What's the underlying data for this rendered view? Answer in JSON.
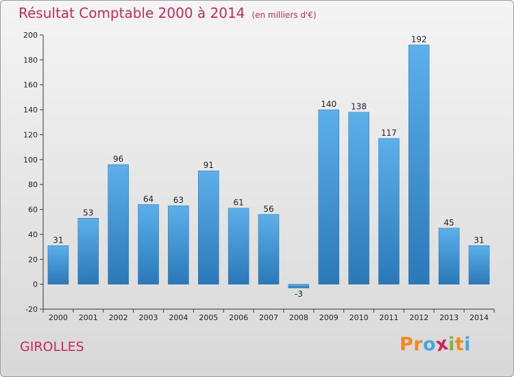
{
  "title": "Résultat Comptable 2000 à 2014",
  "unit_note": "(en milliers d'€)",
  "place": "GIROLLES",
  "logo": {
    "text": "Proxiti",
    "letters": [
      "P",
      "r",
      "o",
      "x",
      "i",
      "t",
      "i"
    ],
    "colors": [
      "#f08a1c",
      "#f08a1c",
      "#4aa3df",
      "#c8285a",
      "#7ab648",
      "#f08a1c",
      "#4aa3df"
    ]
  },
  "colors": {
    "title": "#c8285a",
    "bar_top": "#5cb0ea",
    "bar_bottom": "#2a78b8"
  },
  "chart_data": {
    "type": "bar",
    "categories": [
      "2000",
      "2001",
      "2002",
      "2003",
      "2004",
      "2005",
      "2006",
      "2007",
      "2008",
      "2009",
      "2010",
      "2011",
      "2012",
      "2013",
      "2014"
    ],
    "values": [
      31,
      53,
      96,
      64,
      63,
      91,
      61,
      56,
      -3,
      140,
      138,
      117,
      192,
      45,
      31
    ],
    "ylim": [
      -20,
      200
    ],
    "yticks": [
      -20,
      0,
      20,
      40,
      60,
      80,
      100,
      120,
      140,
      160,
      180,
      200
    ],
    "grid": false,
    "legend": "none"
  }
}
